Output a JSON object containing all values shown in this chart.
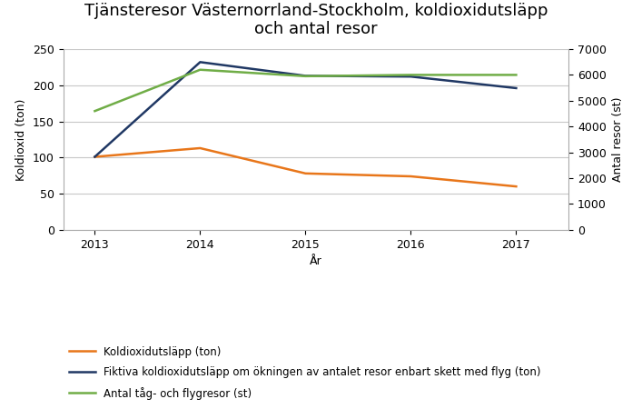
{
  "title": "Tjänsteresor Västernorrland-Stockholm, koldioxidutsläpp\noch antal resor",
  "xlabel": "År",
  "ylabel_left": "Koldioxid (ton)",
  "ylabel_right": "Antal resor (st)",
  "years": [
    2013,
    2014,
    2015,
    2016,
    2017
  ],
  "co2_actual": [
    101,
    113,
    78,
    74,
    60
  ],
  "co2_fictive": [
    101,
    232,
    213,
    212,
    196
  ],
  "antal_resor": [
    4600,
    6200,
    5950,
    6000,
    6000
  ],
  "color_orange": "#E8761A",
  "color_blue": "#203864",
  "color_green": "#70AD47",
  "ylim_left": [
    0,
    250
  ],
  "ylim_right": [
    0,
    7000
  ],
  "yticks_left": [
    0,
    50,
    100,
    150,
    200,
    250
  ],
  "yticks_right": [
    0,
    1000,
    2000,
    3000,
    4000,
    5000,
    6000,
    7000
  ],
  "legend_co2": "Koldioxidutsläpp (ton)",
  "legend_fictive": "Fiktiva koldioxidutsläpp om ökningen av antalet resor enbart skett med flyg (ton)",
  "legend_antal": "Antal tåg- och flygresor (st)",
  "title_fontsize": 13,
  "label_fontsize": 9,
  "legend_fontsize": 8.5,
  "tick_fontsize": 9,
  "background_color": "#ffffff",
  "grid_color": "#c8c8c8"
}
